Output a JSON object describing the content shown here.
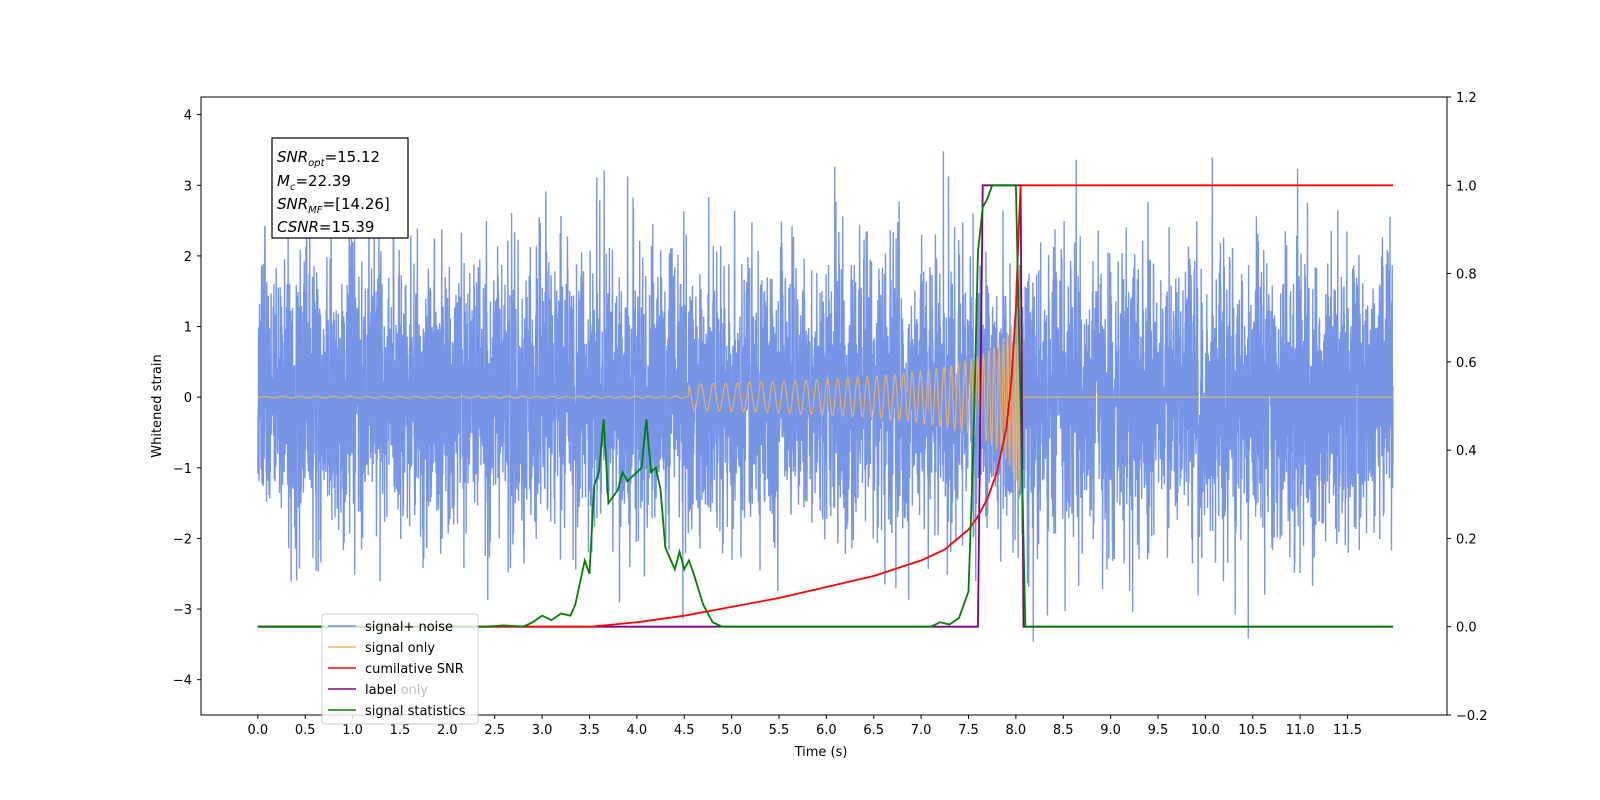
{
  "chart_data": {
    "type": "line",
    "xlabel": "Time (s)",
    "ylabel": "Whitened strain",
    "xlim": [
      -0.6,
      12.55
    ],
    "ylim": [
      -4.5,
      4.25
    ],
    "y2lim": [
      -0.2,
      1.2
    ],
    "x_ticks": [
      "0.0",
      "0.5",
      "1.0",
      "1.5",
      "2.0",
      "2.5",
      "3.0",
      "3.5",
      "4.0",
      "4.5",
      "5.0",
      "5.5",
      "6.0",
      "6.5",
      "7.0",
      "7.5",
      "8.0",
      "8.5",
      "9.0",
      "9.5",
      "10.0",
      "10.5",
      "11.0",
      "11.5"
    ],
    "y_ticks": [
      "4",
      "3",
      "2",
      "1",
      "0",
      "−1",
      "−2",
      "−3",
      "−4"
    ],
    "y2_ticks": [
      "1.2",
      "1.0",
      "0.8",
      "0.6",
      "0.4",
      "0.2",
      "0.0",
      "−0.2"
    ],
    "grid": false,
    "legend_placement": "lower-left",
    "annotation": {
      "snr_opt": "=15.12",
      "mc": "=22.39",
      "snr_mf": "=[14.26]",
      "csnr": "=15.39"
    },
    "legend": {
      "signal_noise": "signal+ noise",
      "signal_only": "signal only",
      "cumulative_snr": "cumilative SNR",
      "label": "label",
      "hidden_entry": "label only",
      "signal_statistics": "signal statistics"
    },
    "colors": {
      "signal_noise": "#6f8fe6",
      "signal_only": "#f0b060",
      "cumulative_snr": "#ff0000",
      "label": "#800080",
      "signal_statistics": "#008000"
    },
    "series": [
      {
        "name": "signal+ noise",
        "axis": "left",
        "description_of_shape": "whitened strain noise, roughly gaussian with sigma 1, x from 0.0 to 11.98",
        "x_range": [
          0.0,
          11.98
        ],
        "sigma": 1.0
      },
      {
        "name": "signal only",
        "axis": "left",
        "chirp": {
          "start": 0.0,
          "merger": 8.05,
          "peak_amplitude": 3.35,
          "min_amplitude": -3.45
        }
      },
      {
        "name": "cumilative SNR",
        "axis": "right",
        "points": [
          [
            0.0,
            0.0
          ],
          [
            3.5,
            0.0
          ],
          [
            4.0,
            0.01
          ],
          [
            4.5,
            0.025
          ],
          [
            5.0,
            0.045
          ],
          [
            5.5,
            0.065
          ],
          [
            6.0,
            0.09
          ],
          [
            6.5,
            0.115
          ],
          [
            7.0,
            0.15
          ],
          [
            7.25,
            0.175
          ],
          [
            7.5,
            0.22
          ],
          [
            7.6,
            0.25
          ],
          [
            7.7,
            0.29
          ],
          [
            7.8,
            0.35
          ],
          [
            7.9,
            0.45
          ],
          [
            7.95,
            0.55
          ],
          [
            8.0,
            0.72
          ],
          [
            8.03,
            0.9
          ],
          [
            8.05,
            1.0
          ],
          [
            11.98,
            1.0
          ]
        ]
      },
      {
        "name": "label",
        "axis": "right",
        "points": [
          [
            0.0,
            0.0
          ],
          [
            7.6,
            0.0
          ],
          [
            7.65,
            1.0
          ],
          [
            8.05,
            1.0
          ],
          [
            8.08,
            0.0
          ],
          [
            11.98,
            0.0
          ]
        ]
      },
      {
        "name": "signal statistics",
        "axis": "right",
        "points": [
          [
            0.0,
            0.0
          ],
          [
            2.4,
            0.0
          ],
          [
            2.6,
            0.003
          ],
          [
            2.8,
            0.0
          ],
          [
            2.9,
            0.01
          ],
          [
            3.0,
            0.025
          ],
          [
            3.1,
            0.015
          ],
          [
            3.2,
            0.03
          ],
          [
            3.3,
            0.025
          ],
          [
            3.35,
            0.05
          ],
          [
            3.45,
            0.15
          ],
          [
            3.5,
            0.12
          ],
          [
            3.55,
            0.32
          ],
          [
            3.6,
            0.35
          ],
          [
            3.65,
            0.47
          ],
          [
            3.7,
            0.28
          ],
          [
            3.8,
            0.31
          ],
          [
            3.85,
            0.35
          ],
          [
            3.9,
            0.33
          ],
          [
            4.0,
            0.35
          ],
          [
            4.05,
            0.36
          ],
          [
            4.1,
            0.47
          ],
          [
            4.15,
            0.35
          ],
          [
            4.2,
            0.36
          ],
          [
            4.25,
            0.31
          ],
          [
            4.3,
            0.18
          ],
          [
            4.4,
            0.13
          ],
          [
            4.45,
            0.17
          ],
          [
            4.5,
            0.13
          ],
          [
            4.55,
            0.15
          ],
          [
            4.6,
            0.12
          ],
          [
            4.7,
            0.05
          ],
          [
            4.8,
            0.01
          ],
          [
            4.9,
            0.0
          ],
          [
            7.1,
            0.0
          ],
          [
            7.2,
            0.01
          ],
          [
            7.3,
            0.005
          ],
          [
            7.4,
            0.02
          ],
          [
            7.5,
            0.08
          ],
          [
            7.55,
            0.4
          ],
          [
            7.6,
            0.85
          ],
          [
            7.65,
            0.95
          ],
          [
            7.7,
            0.97
          ],
          [
            7.75,
            1.0
          ],
          [
            8.0,
            1.0
          ],
          [
            8.05,
            0.5
          ],
          [
            8.1,
            0.0
          ],
          [
            11.98,
            0.0
          ]
        ]
      }
    ]
  }
}
